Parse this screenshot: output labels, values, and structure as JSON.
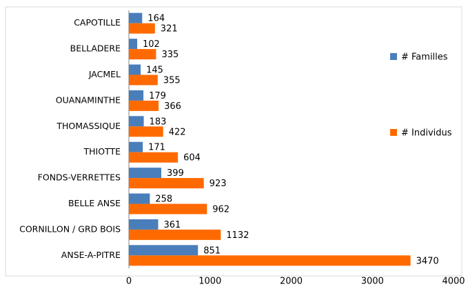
{
  "chart_data": {
    "type": "bar",
    "orientation": "horizontal",
    "categories": [
      "CAPOTILLE",
      "BELLADERE",
      "JACMEL",
      "OUANAMINTHE",
      "THOMASSIQUE",
      "THIOTTE",
      "FONDS-VERRETTES",
      "BELLE ANSE",
      "CORNILLON / GRD BOIS",
      "ANSE-A-PITRE"
    ],
    "series": [
      {
        "name": "# Familles",
        "color": "#4a7ebb",
        "values": [
          164,
          102,
          145,
          179,
          183,
          171,
          399,
          258,
          361,
          851
        ]
      },
      {
        "name": "# Individus",
        "color": "#ff6a00",
        "values": [
          321,
          335,
          355,
          366,
          422,
          604,
          923,
          962,
          1132,
          3470
        ]
      }
    ],
    "xlim": [
      0,
      4000
    ],
    "xticks": [
      0,
      1000,
      2000,
      3000,
      4000
    ],
    "grid": false
  }
}
